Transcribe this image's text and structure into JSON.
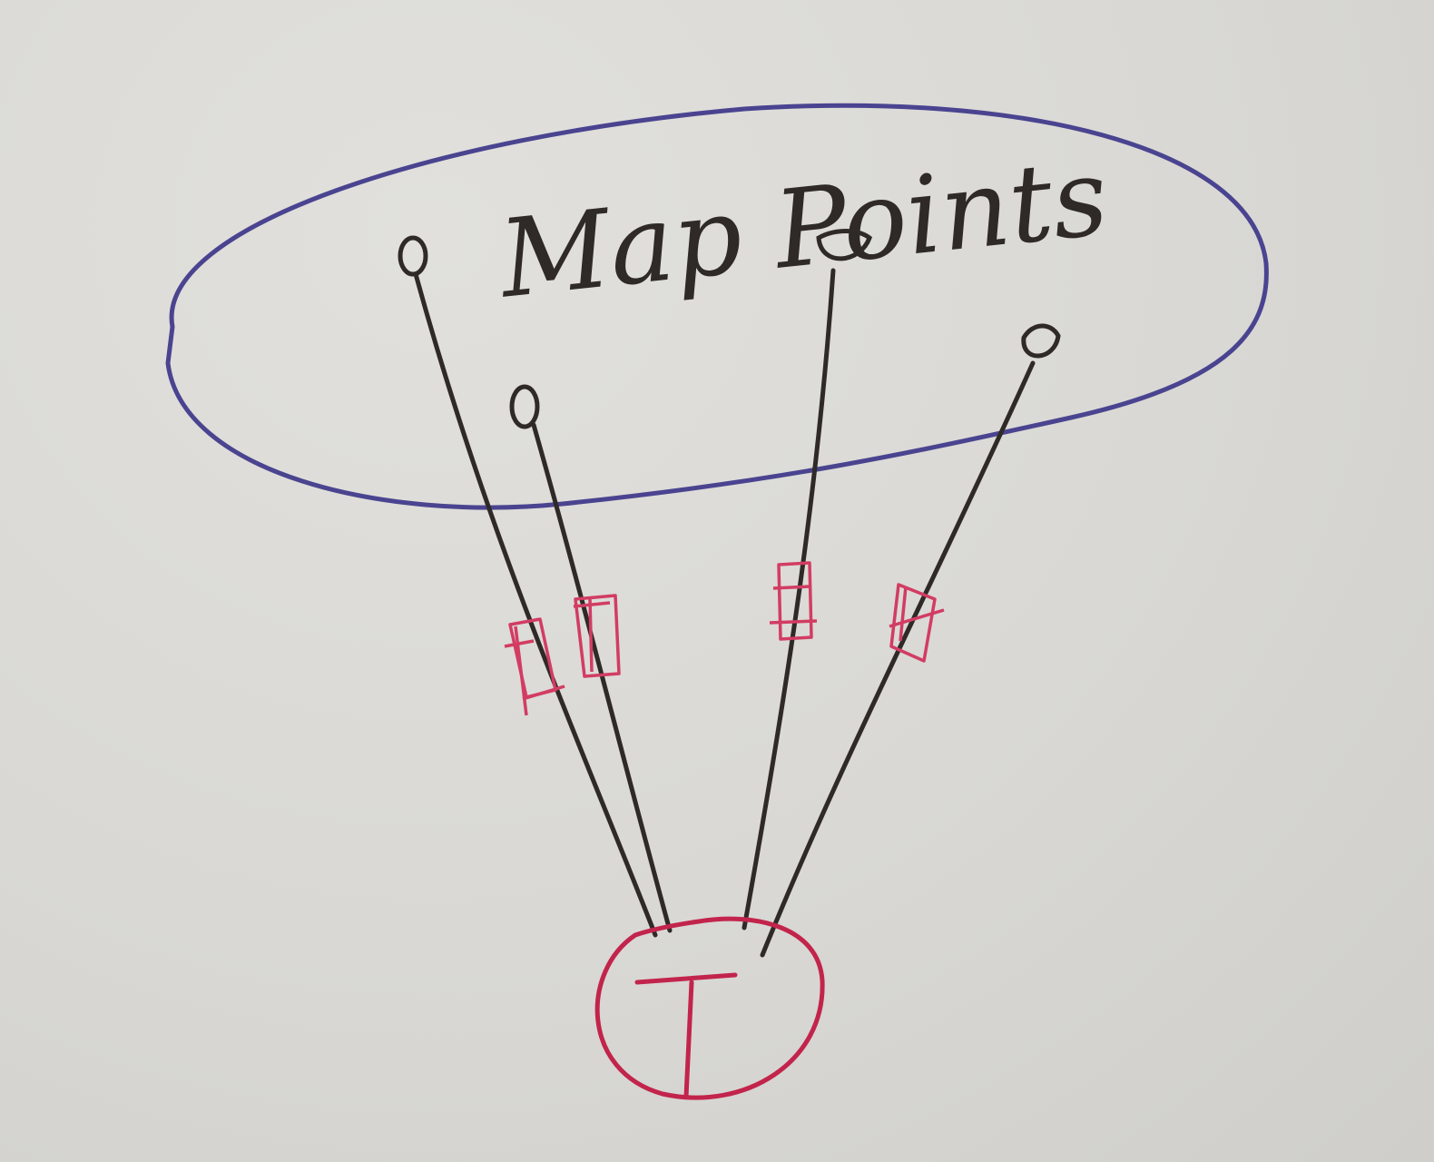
{
  "diagram": {
    "label": "Map Points",
    "nodes": [
      {
        "id": "map-point-1",
        "type": "map-point"
      },
      {
        "id": "map-point-2",
        "type": "map-point"
      },
      {
        "id": "map-point-3",
        "type": "map-point"
      },
      {
        "id": "map-point-4",
        "type": "map-point"
      },
      {
        "id": "tracker",
        "type": "circle",
        "symbol": "T"
      }
    ],
    "edges": [
      {
        "from": "tracker",
        "to": "map-point-1",
        "marker": "pink-box"
      },
      {
        "from": "tracker",
        "to": "map-point-2",
        "marker": "pink-box"
      },
      {
        "from": "tracker",
        "to": "map-point-3",
        "marker": "pink-box"
      },
      {
        "from": "tracker",
        "to": "map-point-4",
        "marker": "pink-box"
      }
    ],
    "colors": {
      "background": "#d9d8d4",
      "ellipse": "#4a4490",
      "ink": "#2f2a27",
      "pink": "#d23c63",
      "red": "#c2244c"
    }
  }
}
